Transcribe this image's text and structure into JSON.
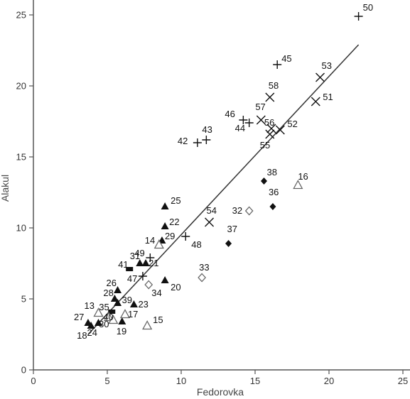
{
  "chart_data": {
    "type": "scatter",
    "title": "",
    "xlabel": "Fedorovka",
    "ylabel": "Alakul",
    "xlim": [
      0,
      25
    ],
    "ylim": [
      0,
      25
    ],
    "xticks": [
      "0",
      "5",
      "10",
      "15",
      "20",
      "25"
    ],
    "yticks": [
      "0",
      "5",
      "10",
      "15",
      "20",
      "25"
    ],
    "grid": false,
    "legend": "none",
    "colors": {
      "axis": "#555555",
      "marker": "#111111",
      "hollow_marker": "#666666",
      "trend_line": "#333333"
    },
    "trend_line": {
      "x": [
        3.7,
        22.0
      ],
      "y": [
        2.5,
        22.9
      ]
    },
    "series": [
      {
        "marker": "filled-triangle",
        "points": [
          {
            "x": 8.9,
            "y": 11.5,
            "label": "25"
          },
          {
            "x": 8.9,
            "y": 10.1,
            "label": "22"
          },
          {
            "x": 8.7,
            "y": 9.1,
            "label": "29"
          },
          {
            "x": 7.2,
            "y": 7.5,
            "label": "31"
          },
          {
            "x": 7.6,
            "y": 7.5,
            "label": "21"
          },
          {
            "x": 8.9,
            "y": 6.3,
            "label": "20"
          },
          {
            "x": 5.7,
            "y": 5.6,
            "label": "26"
          },
          {
            "x": 5.5,
            "y": 5.0,
            "label": "28"
          },
          {
            "x": 5.7,
            "y": 4.7,
            "label": "39"
          },
          {
            "x": 6.8,
            "y": 4.6,
            "label": "23"
          },
          {
            "x": 3.7,
            "y": 3.3,
            "label": "27"
          },
          {
            "x": 3.9,
            "y": 3.1,
            "label": "18"
          },
          {
            "x": 4.4,
            "y": 3.3,
            "label": "24"
          },
          {
            "x": 6.0,
            "y": 3.4,
            "label": "19"
          }
        ]
      },
      {
        "marker": "filled-rect",
        "points": [
          {
            "x": 6.5,
            "y": 7.1,
            "label": "41"
          },
          {
            "x": 5.3,
            "y": 4.1,
            "label": "35"
          }
        ]
      },
      {
        "marker": "hollow-triangle",
        "points": [
          {
            "x": 8.5,
            "y": 8.8,
            "label": "14"
          },
          {
            "x": 17.9,
            "y": 13.0,
            "label": "16"
          },
          {
            "x": 7.7,
            "y": 3.1,
            "label": "15"
          },
          {
            "x": 6.2,
            "y": 3.9,
            "label": "17"
          },
          {
            "x": 4.4,
            "y": 4.0,
            "label": "13"
          },
          {
            "x": 5.1,
            "y": 3.7,
            "label": "30"
          },
          {
            "x": 5.4,
            "y": 3.5,
            "label": "40"
          }
        ]
      },
      {
        "marker": "filled-diamond",
        "points": [
          {
            "x": 15.6,
            "y": 13.3,
            "label": "38"
          },
          {
            "x": 16.2,
            "y": 11.5,
            "label": "36"
          },
          {
            "x": 13.2,
            "y": 8.9,
            "label": "37"
          }
        ]
      },
      {
        "marker": "hollow-diamond",
        "points": [
          {
            "x": 14.6,
            "y": 11.2,
            "label": "32"
          },
          {
            "x": 11.4,
            "y": 6.5,
            "label": "33"
          },
          {
            "x": 7.8,
            "y": 6.0,
            "label": "34"
          }
        ]
      },
      {
        "marker": "plus",
        "points": [
          {
            "x": 22.0,
            "y": 24.9,
            "label": "50"
          },
          {
            "x": 16.5,
            "y": 21.5,
            "label": "45"
          },
          {
            "x": 11.7,
            "y": 16.2,
            "label": "43"
          },
          {
            "x": 11.1,
            "y": 16.0,
            "label": "42"
          },
          {
            "x": 14.2,
            "y": 17.6,
            "label": "46"
          },
          {
            "x": 14.6,
            "y": 17.4,
            "label": "44"
          },
          {
            "x": 10.3,
            "y": 9.4,
            "label": "48"
          },
          {
            "x": 7.9,
            "y": 7.9,
            "label": "49"
          },
          {
            "x": 7.4,
            "y": 6.6,
            "label": "47"
          }
        ]
      },
      {
        "marker": "x",
        "points": [
          {
            "x": 19.4,
            "y": 20.6,
            "label": "53"
          },
          {
            "x": 16.0,
            "y": 19.2,
            "label": "58"
          },
          {
            "x": 19.1,
            "y": 18.9,
            "label": "51"
          },
          {
            "x": 15.4,
            "y": 17.6,
            "label": "57"
          },
          {
            "x": 16.1,
            "y": 17.0,
            "label": "56"
          },
          {
            "x": 16.7,
            "y": 16.9,
            "label": "52"
          },
          {
            "x": 16.0,
            "y": 16.6,
            "label": "55"
          },
          {
            "x": 11.9,
            "y": 10.4,
            "label": "54"
          }
        ]
      }
    ]
  }
}
